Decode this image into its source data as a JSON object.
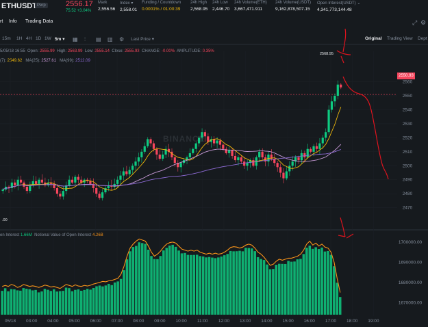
{
  "ticker": {
    "symbol": "ETHUSDT",
    "badge": "Perp",
    "price": "2556.17",
    "change": "75.52 +3.04%",
    "stats": [
      {
        "label": "Mark",
        "value": "2,556.56",
        "orange": false
      },
      {
        "label": "Index ▾",
        "value": "2,558.01",
        "orange": false
      },
      {
        "label": "Funding / Countdown",
        "value": "0.0001% / 01:00:39",
        "orange": true
      },
      {
        "label": "24h High",
        "value": "2,568.95",
        "orange": false
      },
      {
        "label": "24h Low",
        "value": "2,446.70",
        "orange": false
      },
      {
        "label": "24h Volume(ETH)",
        "value": "3,667,471.911",
        "orange": false
      },
      {
        "label": "24h Volume(USDT)",
        "value": "9,162,878,507.15",
        "orange": false
      },
      {
        "label": "Open Interest(USDT) ⌄",
        "value": "4,341,773,144.48",
        "orange": false
      }
    ]
  },
  "tabs": {
    "chart": "rt",
    "info": "Info",
    "trading_data": "Trading Data"
  },
  "toolbar": {
    "intervals": [
      "15m",
      "1H",
      "4H",
      "1D",
      "1W",
      "5m ▾"
    ],
    "price_type": "Last Price ▾",
    "views": [
      "Original",
      "Trading View",
      "Dept"
    ]
  },
  "info_line": {
    "date": "5/05/18 16:55",
    "open_label": "Open:",
    "open": "2555.99",
    "high_label": "High:",
    "high": "2563.99",
    "low_label": "Low:",
    "low": "2555.14",
    "close_label": "Close:",
    "close": "2555.93",
    "change_label": "CHANGE:",
    "change": "-0.00%",
    "amp_label": "AMPLITUDE:",
    "amp": "0.35%"
  },
  "ma_line": {
    "ma7_label": "(7):",
    "ma7": "2549.62",
    "ma25_label": "MA(25):",
    "ma25": "2527.61",
    "ma99_label": "MA(99):",
    "ma99": "2512.09"
  },
  "watermark": "BINANCE",
  "peak_label": "2568.95",
  "last_price_tag": "2550.93",
  "zero_label": ".00",
  "oi_line": {
    "oi_label": "en Interest",
    "oi_value": "1.66M",
    "notional_label": "Notional Value of Open Interest",
    "notional_value": "4.26B"
  },
  "colors": {
    "up": "#0ecb81",
    "down": "#f6465d",
    "ma7": "#f0b90b",
    "ma25": "#c99bd8",
    "ma99": "#8e6bd6",
    "oi_line": "#f7931a",
    "annotation": "#e0141e"
  },
  "chart_data": [
    {
      "type": "candlestick",
      "title": "ETHUSDT 5m",
      "y_ticks": [
        2470,
        2480,
        2490,
        2500,
        2510,
        2520,
        2530,
        2540,
        2550,
        2560
      ],
      "ylim": [
        2462,
        2572
      ],
      "x_ticks": [
        "05/18",
        "03:00",
        "04:00",
        "05:00",
        "06:00",
        "07:00",
        "08:00",
        "09:00",
        "10:00",
        "11:00",
        "12:00",
        "13:00",
        "14:00",
        "15:00",
        "16:00",
        "17:00",
        "18:00",
        "19:00"
      ],
      "close": [
        2483,
        2485,
        2484,
        2488,
        2486,
        2490,
        2488,
        2485,
        2482,
        2486,
        2489,
        2487,
        2490,
        2488,
        2486,
        2488,
        2487,
        2484,
        2480,
        2478,
        2482,
        2486,
        2490,
        2488,
        2492,
        2490,
        2488,
        2490,
        2489,
        2487,
        2484,
        2480,
        2477,
        2481,
        2484,
        2486,
        2485,
        2487,
        2490,
        2493,
        2496,
        2494,
        2497,
        2500,
        2503,
        2506,
        2510,
        2514,
        2519,
        2516,
        2512,
        2508,
        2505,
        2508,
        2512,
        2510,
        2506,
        2502,
        2499,
        2502,
        2504,
        2506,
        2509,
        2512,
        2516,
        2520,
        2524,
        2521,
        2517,
        2519,
        2516,
        2518,
        2515,
        2512,
        2509,
        2511,
        2507,
        2504,
        2506,
        2503,
        2500,
        2502,
        2504,
        2500,
        2506,
        2510,
        2506,
        2503,
        2508,
        2505,
        2502,
        2499,
        2495,
        2491,
        2496,
        2500,
        2503,
        2506,
        2504,
        2509,
        2506,
        2512,
        2510,
        2514,
        2512,
        2516,
        2520,
        2524,
        2540,
        2546,
        2550,
        2558,
        2556
      ],
      "ma_series": [
        {
          "name": "MA(7)",
          "last": 2549.62
        },
        {
          "name": "MA(25)",
          "last": 2527.61
        },
        {
          "name": "MA(99)",
          "last": 2512.09
        }
      ],
      "last_price": 2550.93,
      "peak": 2568.95
    },
    {
      "type": "bar",
      "title": "Open Interest",
      "y_ticks": [
        1670000,
        1680000,
        1690000,
        1700000
      ],
      "y_tick_labels": [
        "1670000.00",
        "1680000.00",
        "1690000.00",
        "1700000.00"
      ],
      "ylim": [
        1664000,
        1703000
      ],
      "values": [
        1678,
        1678.5,
        1678,
        1679,
        1678.5,
        1677.5,
        1678,
        1679,
        1678.5,
        1678,
        1678.3,
        1678,
        1677.5,
        1678,
        1678.7,
        1678.3,
        1677.7,
        1678,
        1677.5,
        1677,
        1678,
        1679,
        1678.5,
        1678,
        1678.8,
        1678.2,
        1678,
        1678.5,
        1678.2,
        1678.6,
        1679.2,
        1679.6,
        1680,
        1680.5,
        1680.3,
        1680.8,
        1681,
        1681.5,
        1682,
        1684,
        1688,
        1693,
        1697,
        1699,
        1700.5,
        1701.5,
        1701,
        1700.5,
        1698,
        1695,
        1693,
        1694,
        1695.5,
        1697.5,
        1699,
        1699.7,
        1700,
        1699.5,
        1698,
        1696.5,
        1696,
        1695.5,
        1696,
        1695.5,
        1696,
        1695,
        1694.5,
        1694,
        1694.5,
        1694,
        1694.5,
        1694,
        1694.3,
        1695,
        1696,
        1697.3,
        1697.7,
        1697.5,
        1697,
        1697.5,
        1698.5,
        1699,
        1698.5,
        1697,
        1695,
        1694,
        1692.5,
        1690.5,
        1688.5,
        1689,
        1690.5,
        1691.5,
        1691,
        1691.5,
        1692,
        1692,
        1692.5,
        1693,
        1694,
        1696,
        1699,
        1700.5,
        1698.5,
        1699.5,
        1698,
        1699,
        1697.5,
        1697,
        1695,
        1690,
        1682,
        1675
      ],
      "line_label": "Notional Value of Open Interest"
    }
  ]
}
